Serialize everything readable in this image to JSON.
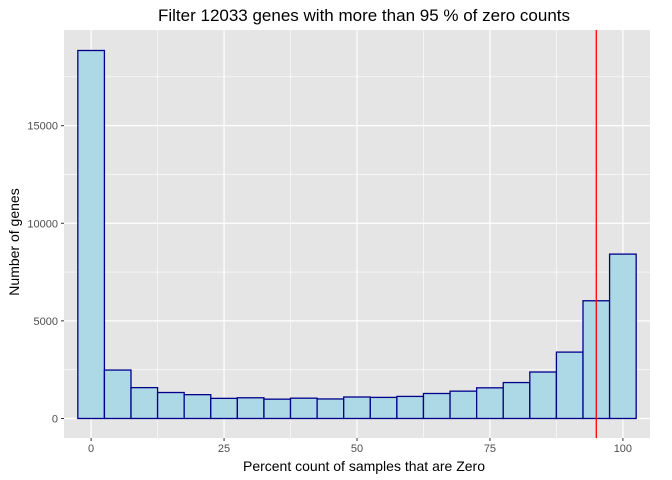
{
  "chart_data": {
    "type": "bar",
    "title": "Filter 12033  genes with more than 95 % of zero counts",
    "xlabel": "Percent count of samples that are Zero",
    "ylabel": "Number of genes",
    "bin_width": 5,
    "bins": [
      {
        "center": 0,
        "count": 18850
      },
      {
        "center": 5,
        "count": 2480
      },
      {
        "center": 10,
        "count": 1580
      },
      {
        "center": 15,
        "count": 1330
      },
      {
        "center": 20,
        "count": 1220
      },
      {
        "center": 25,
        "count": 1030
      },
      {
        "center": 30,
        "count": 1060
      },
      {
        "center": 35,
        "count": 990
      },
      {
        "center": 40,
        "count": 1040
      },
      {
        "center": 45,
        "count": 1000
      },
      {
        "center": 50,
        "count": 1100
      },
      {
        "center": 55,
        "count": 1080
      },
      {
        "center": 60,
        "count": 1130
      },
      {
        "center": 65,
        "count": 1280
      },
      {
        "center": 70,
        "count": 1400
      },
      {
        "center": 75,
        "count": 1570
      },
      {
        "center": 80,
        "count": 1840
      },
      {
        "center": 85,
        "count": 2380
      },
      {
        "center": 90,
        "count": 3400
      },
      {
        "center": 95,
        "count": 6030
      },
      {
        "center": 100,
        "count": 8420
      }
    ],
    "xlim": [
      -5.1,
      105.1
    ],
    "ylim": [
      -1000,
      19900
    ],
    "xticks": [
      0,
      25,
      50,
      75,
      100
    ],
    "yticks": [
      0,
      5000,
      10000,
      15000
    ],
    "vline": 95,
    "grid": true,
    "colors": {
      "panel": "#e5e5e5",
      "grid": "#ffffff",
      "bar_fill": "#add8e6",
      "bar_stroke": "#00008b",
      "vline": "#ff0000",
      "text": "#4d4d4d",
      "title": "#000000"
    }
  }
}
